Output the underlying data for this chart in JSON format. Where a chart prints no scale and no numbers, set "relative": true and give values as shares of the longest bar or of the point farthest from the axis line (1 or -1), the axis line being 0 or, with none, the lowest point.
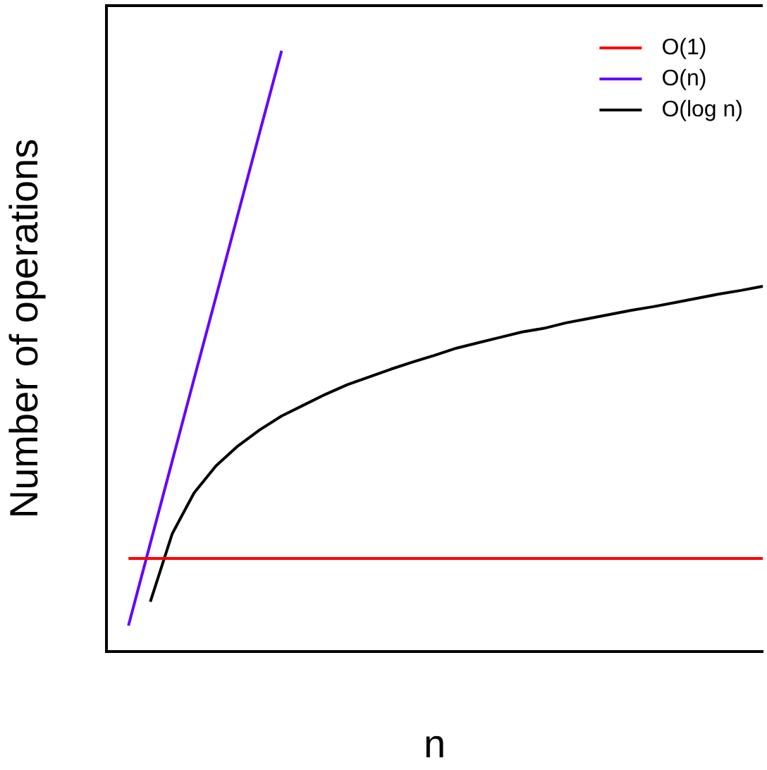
{
  "chart_data": {
    "type": "line",
    "relative": true,
    "xlabel": "n",
    "ylabel": "Number of operations",
    "grid": false,
    "legend": "top right",
    "marker": "none",
    "line_style": "solid",
    "categories": [
      null,
      null,
      null,
      null,
      null,
      null,
      null,
      null,
      null,
      null,
      null,
      null,
      null,
      null,
      null,
      null,
      null,
      null,
      null,
      null,
      null,
      null,
      null,
      null,
      null,
      null,
      null,
      null,
      null,
      null,
      null
    ],
    "series": [
      {
        "name": "O(1)",
        "color": "#ff0000",
        "values": [
          null,
          0.155,
          0.155,
          0.155,
          0.155,
          0.155,
          0.155,
          0.155,
          0.155,
          0.155,
          0.155,
          0.155,
          0.155,
          0.155,
          0.155,
          0.155,
          0.155,
          0.155,
          0.155,
          0.155,
          0.155,
          0.155,
          0.155,
          0.155,
          0.155,
          0.155,
          0.155,
          0.155,
          0.155,
          0.155,
          0.155
        ]
      },
      {
        "name": "O(n)",
        "color": "#6600ff",
        "values": [
          null,
          0.043,
          0.18,
          0.317,
          0.454,
          0.59,
          0.727,
          0.864,
          1.0,
          null,
          null,
          null,
          null,
          null,
          null,
          null,
          null,
          null,
          null,
          null,
          null,
          null,
          null,
          null,
          null,
          null,
          null,
          null,
          null,
          null,
          null
        ]
      },
      {
        "name": "O(log n)",
        "color": "#000000",
        "values": [
          null,
          null,
          0.083,
          0.196,
          0.264,
          0.309,
          0.342,
          0.369,
          0.392,
          0.41,
          0.428,
          0.444,
          0.457,
          0.47,
          0.482,
          0.493,
          0.505,
          0.514,
          0.523,
          0.532,
          0.538,
          0.547,
          0.554,
          0.561,
          0.568,
          0.574,
          0.581,
          0.588,
          0.595,
          0.601,
          0.608
        ]
      }
    ]
  }
}
